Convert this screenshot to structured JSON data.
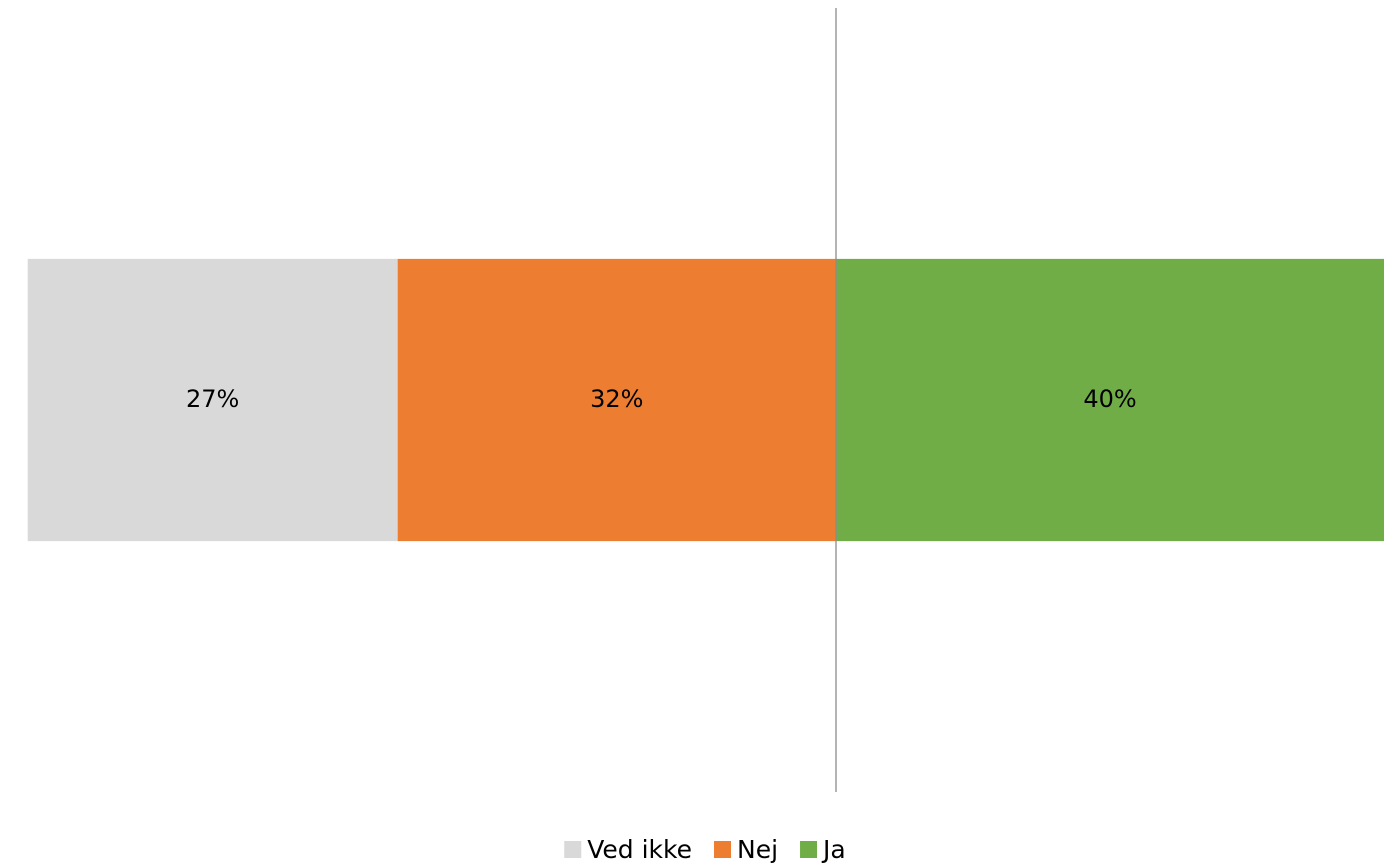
{
  "chart_data": {
    "type": "diverging_stacked_bar",
    "categories": [
      null
    ],
    "xlim": [
      -60,
      40
    ],
    "series": [
      {
        "name": "Ved ikke",
        "color": "#d9d9d9",
        "values": [
          -27
        ],
        "value_labels": [
          "27%"
        ]
      },
      {
        "name": "Nej",
        "color": "#ed7d31",
        "values": [
          -32
        ],
        "value_labels": [
          "32%"
        ]
      },
      {
        "name": "Ja",
        "color": "#70ad47",
        "values": [
          40
        ],
        "value_labels": [
          "40%"
        ]
      }
    ],
    "legend": "bottom"
  }
}
